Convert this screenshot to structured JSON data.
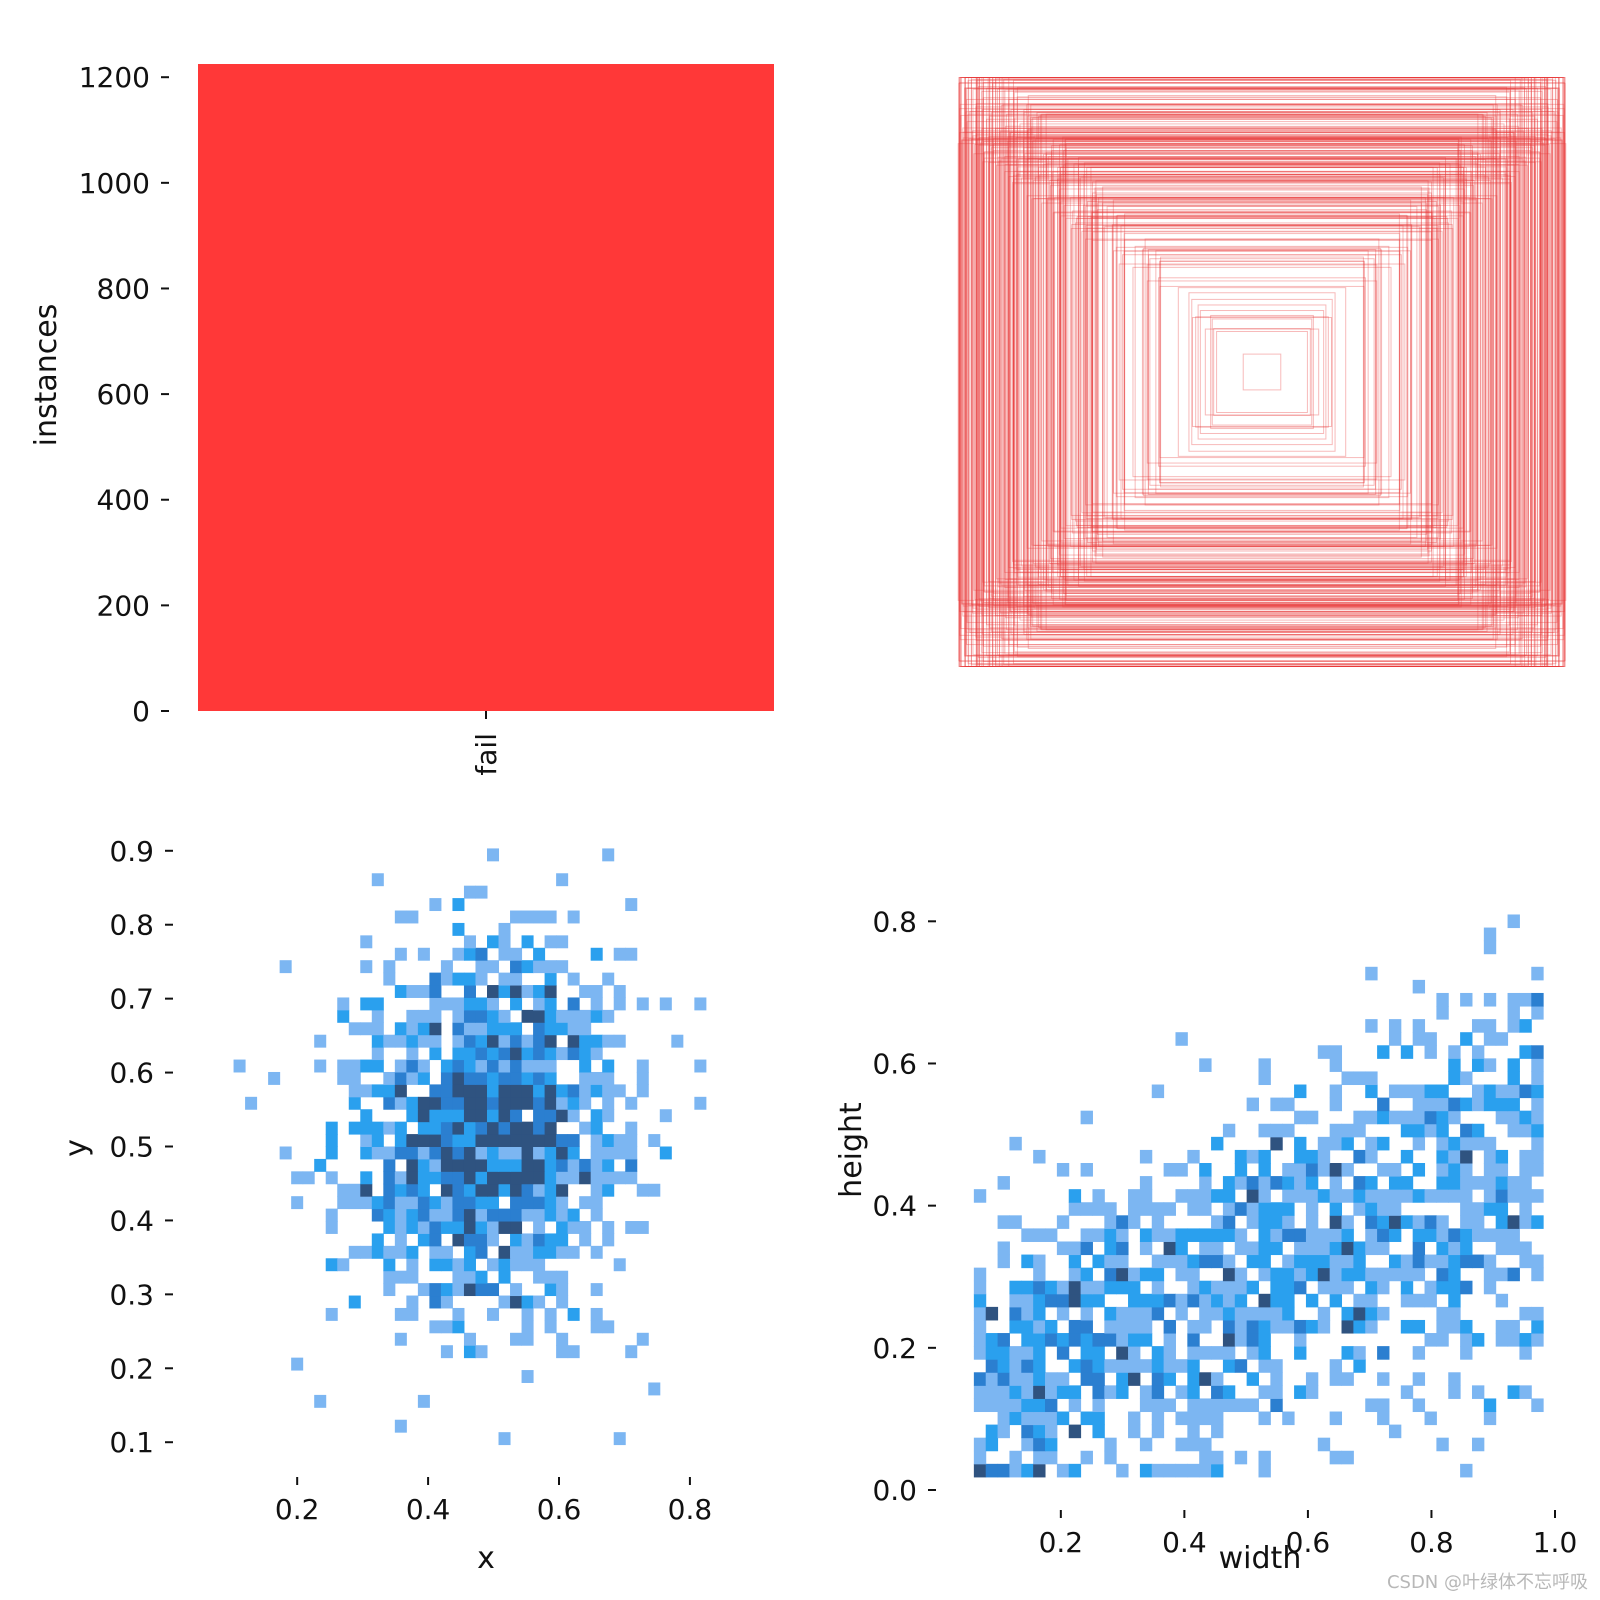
{
  "colors": {
    "bar": "#ff3838",
    "box_stroke": "#e83a3a",
    "hist_light": "#7cb6f2",
    "hist_mid": "#2aa0ee",
    "hist_dark": "#2b7fd0",
    "hist_darkest": "#2f5380",
    "tick": "#111111"
  },
  "watermark": "CSDN @叶绿体不忘呼吸",
  "chart_data": [
    {
      "id": "instances",
      "type": "bar",
      "categories": [
        "fail"
      ],
      "values": [
        1225
      ],
      "ylabel": "instances",
      "xlabel": "",
      "ylim": [
        0,
        1225
      ],
      "yticks": [
        0,
        200,
        400,
        600,
        800,
        1000,
        1200
      ]
    },
    {
      "id": "boxes",
      "type": "box-overlay",
      "description_count": 300,
      "width_range": [
        0.05,
        0.98
      ],
      "height_range": [
        0.03,
        0.95
      ]
    },
    {
      "id": "xy",
      "type": "heatmap",
      "xlabel": "x",
      "ylabel": "y",
      "xlim": [
        0.05,
        0.93
      ],
      "ylim": [
        0.08,
        0.92
      ],
      "xticks": [
        "0.2",
        "0.4",
        "0.6",
        "0.8"
      ],
      "xtick_values": [
        0.2,
        0.4,
        0.6,
        0.8
      ],
      "yticks": [
        "0.1",
        "0.2",
        "0.3",
        "0.4",
        "0.5",
        "0.6",
        "0.7",
        "0.8",
        "0.9"
      ],
      "ytick_values": [
        0.1,
        0.2,
        0.3,
        0.4,
        0.5,
        0.6,
        0.7,
        0.8,
        0.9
      ],
      "center": [
        0.49,
        0.52
      ],
      "spread": [
        0.11,
        0.13
      ],
      "samples": 1225,
      "bins": 50
    },
    {
      "id": "wh",
      "type": "heatmap",
      "xlabel": "width",
      "ylabel": "height",
      "xlim": [
        0.04,
        1.0
      ],
      "ylim": [
        0.0,
        0.92
      ],
      "xticks": [
        "0.2",
        "0.4",
        "0.6",
        "0.8",
        "1.0"
      ],
      "xtick_values": [
        0.2,
        0.4,
        0.6,
        0.8,
        1.0
      ],
      "yticks": [
        "0.0",
        "0.2",
        "0.4",
        "0.6",
        "0.8"
      ],
      "ytick_values": [
        0.0,
        0.2,
        0.4,
        0.6,
        0.8
      ],
      "correlation": 0.45,
      "samples": 1225,
      "bins": 50
    }
  ]
}
